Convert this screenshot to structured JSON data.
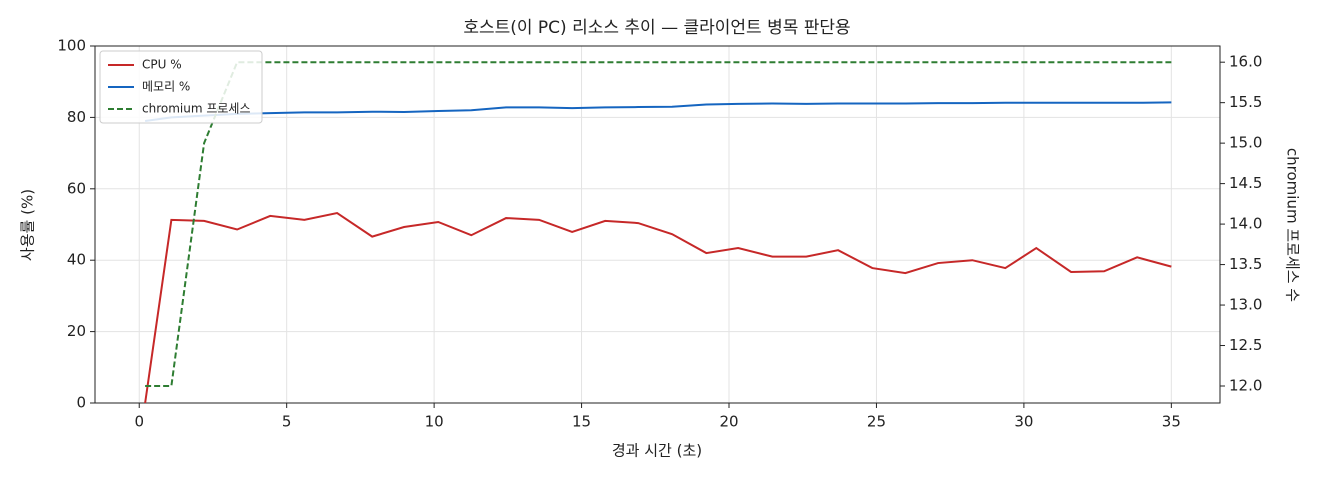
{
  "chart_data": {
    "type": "line",
    "title": "호스트(이 PC) 리소스 추이 — 클라이언트 병목 판단용",
    "xlabel": "경과 시간 (초)",
    "ylabel": "사용률 (%)",
    "y2label": "chromium 프로세스 수",
    "x": [
      0.2,
      1.09,
      2.2,
      3.32,
      4.44,
      5.6,
      6.71,
      7.9,
      8.98,
      10.14,
      11.26,
      12.44,
      13.56,
      14.68,
      15.8,
      16.92,
      18.07,
      19.23,
      20.31,
      21.47,
      22.62,
      23.7,
      24.86,
      25.98,
      27.09,
      28.25,
      29.37,
      30.42,
      31.6,
      32.72,
      33.84,
      35.0
    ],
    "series": [
      {
        "name": "CPU %",
        "color": "#c62828",
        "values": [
          0,
          51.3,
          51,
          48.6,
          52.4,
          51.3,
          53.2,
          46.6,
          49.3,
          50.7,
          47,
          51.8,
          51.3,
          47.9,
          51,
          50.4,
          47.3,
          42,
          43.4,
          41,
          41,
          42.8,
          37.8,
          36.4,
          39.2,
          40,
          37.8,
          43.4,
          36.7,
          36.9,
          40.8,
          38.2
        ]
      },
      {
        "name": "메모리 %",
        "color": "#1565c0",
        "values": [
          79,
          80,
          80.5,
          81,
          81.2,
          81.4,
          81.4,
          81.6,
          81.5,
          81.8,
          82,
          82.8,
          82.8,
          82.6,
          82.8,
          82.9,
          83,
          83.6,
          83.8,
          83.9,
          83.8,
          83.9,
          83.9,
          83.9,
          84,
          84,
          84.1,
          84.1,
          84.1,
          84.1,
          84.1,
          84.2
        ]
      },
      {
        "name": "chromium 프로세스",
        "color": "#2e7d32",
        "linestyle": "dashed",
        "axis": "y2",
        "values": [
          12,
          12,
          15,
          16,
          16,
          16,
          16,
          16,
          16,
          16,
          16,
          16,
          16,
          16,
          16,
          16,
          16,
          16,
          16,
          16,
          16,
          16,
          16,
          16,
          16,
          16,
          16,
          16,
          16,
          16,
          16,
          16
        ]
      }
    ],
    "xlim": [
      -1.5,
      36.65
    ],
    "xticks": [
      0,
      5,
      10,
      15,
      20,
      25,
      30,
      35
    ],
    "ylim": [
      0,
      100
    ],
    "yticks": [
      0,
      20,
      40,
      60,
      80,
      100
    ],
    "y2lim": [
      11.79,
      16.2
    ],
    "y2ticks": [
      {
        "value": 12,
        "label": "12.0"
      },
      12.5,
      {
        "value": 13,
        "label": "13.0"
      },
      13.5,
      {
        "value": 14,
        "label": "14.0"
      },
      14.5,
      {
        "value": 15,
        "label": "15.0"
      },
      15.5,
      {
        "value": 16,
        "label": "16.0"
      }
    ],
    "grid": true,
    "legend": "upper-left"
  }
}
